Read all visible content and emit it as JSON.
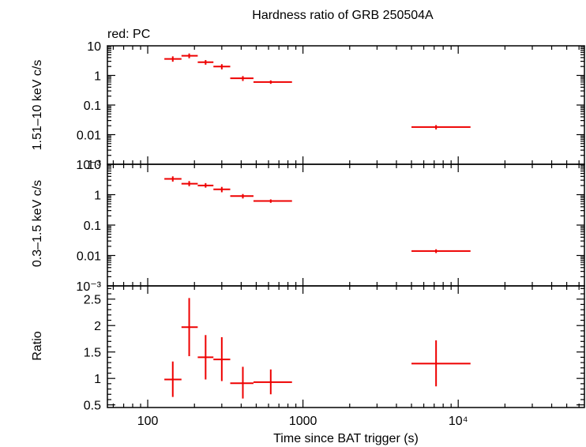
{
  "title": "Hardness ratio of GRB 250504A",
  "subtitle": "red: PC",
  "xlabel": "Time since BAT trigger (s)",
  "colors": {
    "data": "#ee0000",
    "axes": "#000000",
    "background": "#ffffff"
  },
  "chart_data": [
    {
      "type": "scatter",
      "panel": "top",
      "ylabel": "1.51–10 keV c/s",
      "xscale": "log",
      "yscale": "log",
      "xlim": [
        55,
        65000
      ],
      "ylim": [
        0.001,
        10
      ],
      "yticks": [
        {
          "value": 10,
          "label": "10"
        },
        {
          "value": 1,
          "label": "1"
        },
        {
          "value": 0.1,
          "label": "0.1"
        },
        {
          "value": 0.01,
          "label": "0.01"
        },
        {
          "value": 0.001,
          "label": "10⁻³"
        }
      ],
      "series": [
        {
          "points": [
            {
              "x": 145,
              "xmin": 128,
              "xmax": 165,
              "y": 3.6,
              "ylo": 2.9,
              "yhi": 4.4
            },
            {
              "x": 185,
              "xmin": 165,
              "xmax": 210,
              "y": 4.6,
              "ylo": 3.8,
              "yhi": 5.5
            },
            {
              "x": 236,
              "xmin": 210,
              "xmax": 265,
              "y": 2.8,
              "ylo": 2.3,
              "yhi": 3.3
            },
            {
              "x": 300,
              "xmin": 265,
              "xmax": 340,
              "y": 2.0,
              "ylo": 1.6,
              "yhi": 2.4
            },
            {
              "x": 410,
              "xmin": 340,
              "xmax": 480,
              "y": 0.8,
              "ylo": 0.65,
              "yhi": 0.95
            },
            {
              "x": 620,
              "xmin": 480,
              "xmax": 850,
              "y": 0.6,
              "ylo": 0.52,
              "yhi": 0.68
            },
            {
              "x": 7200,
              "xmin": 5000,
              "xmax": 12000,
              "y": 0.018,
              "ylo": 0.015,
              "yhi": 0.021
            }
          ]
        }
      ]
    },
    {
      "type": "scatter",
      "panel": "middle",
      "ylabel": "0.3–1.5 keV c/s",
      "xscale": "log",
      "yscale": "log",
      "xlim": [
        55,
        65000
      ],
      "ylim": [
        0.001,
        10
      ],
      "yticks": [
        {
          "value": 10,
          "label": "10"
        },
        {
          "value": 1,
          "label": "1"
        },
        {
          "value": 0.1,
          "label": "0.1"
        },
        {
          "value": 0.01,
          "label": "0.01"
        },
        {
          "value": 0.001,
          "label": "10⁻³"
        }
      ],
      "series": [
        {
          "points": [
            {
              "x": 145,
              "xmin": 128,
              "xmax": 165,
              "y": 3.3,
              "ylo": 2.7,
              "yhi": 4.0
            },
            {
              "x": 185,
              "xmin": 165,
              "xmax": 210,
              "y": 2.3,
              "ylo": 1.9,
              "yhi": 2.8
            },
            {
              "x": 236,
              "xmin": 210,
              "xmax": 265,
              "y": 2.0,
              "ylo": 1.7,
              "yhi": 2.4
            },
            {
              "x": 300,
              "xmin": 265,
              "xmax": 340,
              "y": 1.5,
              "ylo": 1.2,
              "yhi": 1.8
            },
            {
              "x": 410,
              "xmin": 340,
              "xmax": 480,
              "y": 0.9,
              "ylo": 0.75,
              "yhi": 1.05
            },
            {
              "x": 620,
              "xmin": 480,
              "xmax": 850,
              "y": 0.62,
              "ylo": 0.54,
              "yhi": 0.7
            },
            {
              "x": 7200,
              "xmin": 5000,
              "xmax": 12000,
              "y": 0.014,
              "ylo": 0.012,
              "yhi": 0.016
            }
          ]
        }
      ]
    },
    {
      "type": "scatter",
      "panel": "bottom",
      "ylabel": "Ratio",
      "xscale": "log",
      "yscale": "linear",
      "xlim": [
        55,
        65000
      ],
      "ylim": [
        0.45,
        2.75
      ],
      "yticks": [
        {
          "value": 0.5,
          "label": "0.5"
        },
        {
          "value": 1,
          "label": "1"
        },
        {
          "value": 1.5,
          "label": "1.5"
        },
        {
          "value": 2,
          "label": "2"
        },
        {
          "value": 2.5,
          "label": "2.5"
        }
      ],
      "xticks": [
        {
          "value": 100,
          "label": "100"
        },
        {
          "value": 1000,
          "label": "1000"
        },
        {
          "value": 10000,
          "label": "10⁴"
        }
      ],
      "series": [
        {
          "points": [
            {
              "x": 145,
              "xmin": 128,
              "xmax": 165,
              "y": 0.98,
              "ylo": 0.65,
              "yhi": 1.32
            },
            {
              "x": 185,
              "xmin": 165,
              "xmax": 210,
              "y": 1.97,
              "ylo": 1.42,
              "yhi": 2.52
            },
            {
              "x": 236,
              "xmin": 210,
              "xmax": 265,
              "y": 1.4,
              "ylo": 0.98,
              "yhi": 1.82
            },
            {
              "x": 300,
              "xmin": 265,
              "xmax": 340,
              "y": 1.36,
              "ylo": 0.95,
              "yhi": 1.78
            },
            {
              "x": 410,
              "xmin": 340,
              "xmax": 480,
              "y": 0.91,
              "ylo": 0.62,
              "yhi": 1.22
            },
            {
              "x": 620,
              "xmin": 480,
              "xmax": 850,
              "y": 0.93,
              "ylo": 0.7,
              "yhi": 1.17
            },
            {
              "x": 7200,
              "xmin": 5000,
              "xmax": 12000,
              "y": 1.28,
              "ylo": 0.85,
              "yhi": 1.72
            }
          ]
        }
      ]
    }
  ]
}
